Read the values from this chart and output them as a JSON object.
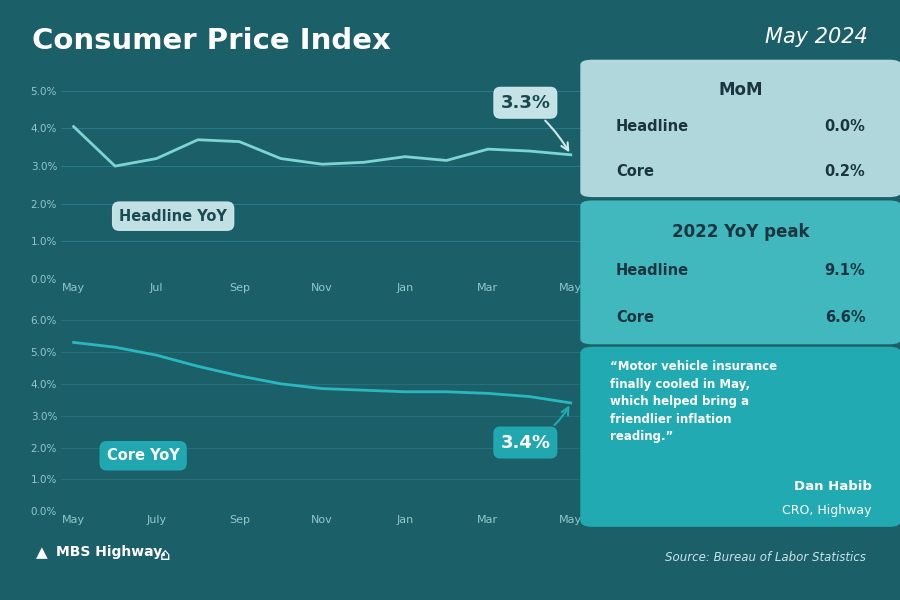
{
  "title": "Consumer Price Index",
  "subtitle": "May 2024",
  "bg_color": "#1b6068",
  "chart1_bg_color": "#1d6b72",
  "chart2_bg_color": "#1a5c63",
  "panel_bg_light": "#b0d8dc",
  "panel_bg_teal": "#40b8be",
  "panel_bg_dark_teal": "#22aab2",
  "headline_yoy_x": [
    0,
    1,
    2,
    3,
    4,
    5,
    6,
    7,
    8,
    9,
    10,
    11,
    12
  ],
  "headline_yoy_y": [
    4.05,
    3.0,
    3.2,
    3.7,
    3.65,
    3.2,
    3.05,
    3.1,
    3.25,
    3.15,
    3.45,
    3.4,
    3.3
  ],
  "headline_xticklabels": [
    "May",
    "Jul",
    "Sep",
    "Nov",
    "Jan",
    "Mar",
    "May"
  ],
  "headline_xticks": [
    0,
    2,
    4,
    6,
    8,
    10,
    12
  ],
  "core_yoy_x": [
    0,
    1,
    2,
    3,
    4,
    5,
    6,
    7,
    8,
    9,
    10,
    11,
    12
  ],
  "core_yoy_y": [
    5.3,
    5.15,
    4.9,
    4.55,
    4.25,
    4.0,
    3.85,
    3.8,
    3.75,
    3.75,
    3.7,
    3.6,
    3.4
  ],
  "core_xticklabels": [
    "May",
    "July",
    "Sep",
    "Nov",
    "Jan",
    "Mar",
    "May"
  ],
  "core_xticks": [
    0,
    2,
    4,
    6,
    8,
    10,
    12
  ],
  "line_color_headline": "#7dd4d4",
  "line_color_core": "#2ab8c0",
  "headline_label": "3.3%",
  "core_label": "3.4%",
  "mom_title": "MoM",
  "mom_headline_label": "Headline",
  "mom_headline_val": "0.0%",
  "mom_core_label": "Core",
  "mom_core_val": "0.2%",
  "peak_title": "2022 YoY peak",
  "peak_headline_label": "Headline",
  "peak_headline_val": "9.1%",
  "peak_core_label": "Core",
  "peak_core_val": "6.6%",
  "quote_text": "“Motor vehicle insurance\nfinally cooled in May,\nwhich helped bring a\nfriendlier inflation\nreading.”",
  "quote_author": "Dan Habib",
  "quote_author_title": "CRO, Highway",
  "source_text": "Source: Bureau of Labor Statistics",
  "logo_text": "MBS Highway.",
  "grid_color": "#2a8090",
  "tick_color": "#90c8cc"
}
